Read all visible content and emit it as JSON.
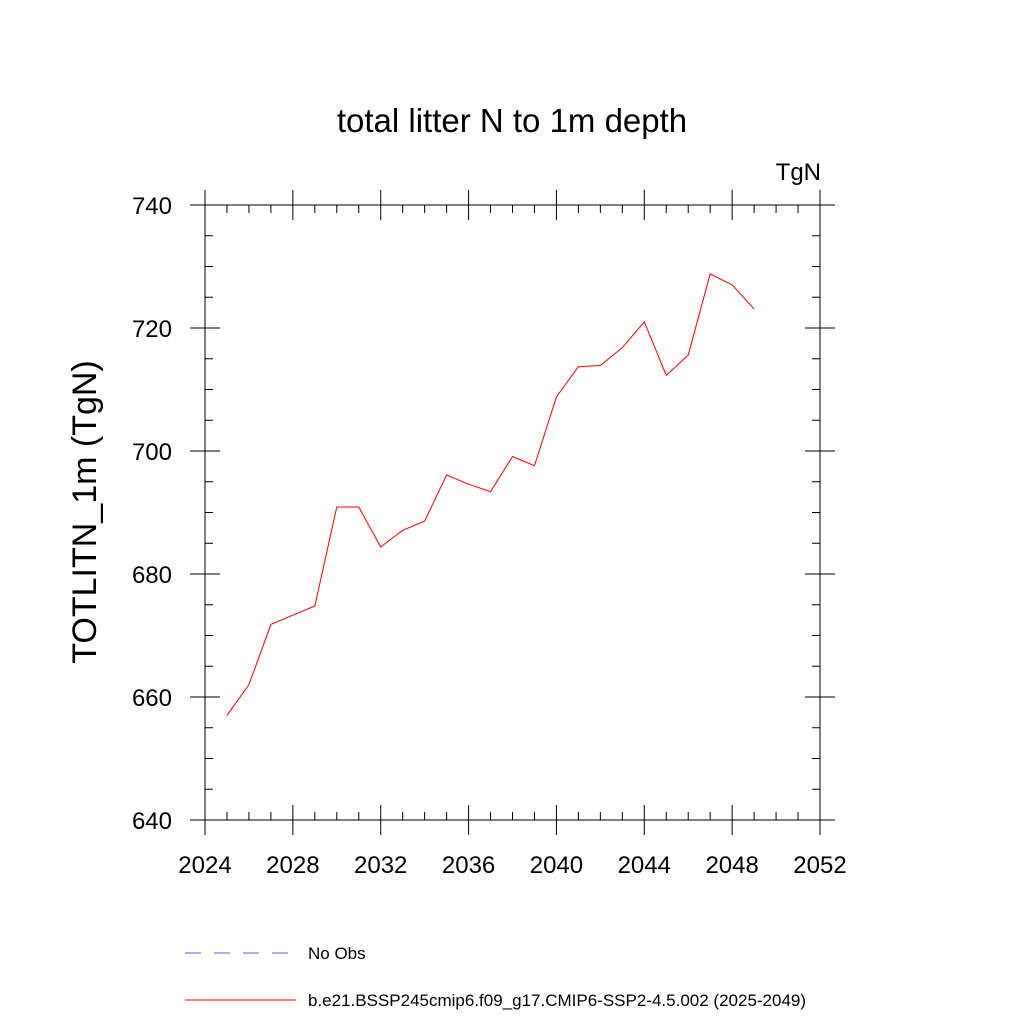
{
  "chart_data": {
    "type": "line",
    "title": "total litter N to 1m depth",
    "units_label": "TgN",
    "ylabel": "TOTLITN_1m  (TgN)",
    "xlabel": "",
    "xlim": [
      2024,
      2052
    ],
    "ylim": [
      640,
      740
    ],
    "x_ticks": [
      2024,
      2028,
      2032,
      2036,
      2040,
      2044,
      2048,
      2052
    ],
    "y_ticks": [
      640,
      660,
      680,
      700,
      720,
      740
    ],
    "x_minor_step": 1,
    "y_minor_step": 5,
    "grid": false,
    "series": [
      {
        "name": "b.e21.BSSP245cmip6.f09_g17.CMIP6-SSP2-4.5.002 (2025-2049)",
        "color": "#ff0000",
        "style": "solid",
        "x": [
          2025,
          2026,
          2027,
          2028,
          2029,
          2030,
          2031,
          2032,
          2033,
          2034,
          2035,
          2036,
          2037,
          2038,
          2039,
          2040,
          2041,
          2042,
          2043,
          2044,
          2045,
          2046,
          2047,
          2048,
          2049
        ],
        "values": [
          657.0,
          662.0,
          671.8,
          673.3,
          674.8,
          690.9,
          690.9,
          684.4,
          687.1,
          688.6,
          696.1,
          694.6,
          693.4,
          699.1,
          697.6,
          708.8,
          713.7,
          713.9,
          716.8,
          721.0,
          712.3,
          715.6,
          728.8,
          727.0,
          723.1
        ]
      }
    ],
    "legend": {
      "placement": "bottom",
      "entries": [
        {
          "label": "No Obs",
          "color": "#6a5acd",
          "style": "dashed"
        },
        {
          "label": "b.e21.BSSP245cmip6.f09_g17.CMIP6-SSP2-4.5.002 (2025-2049)",
          "color": "#ff0000",
          "style": "solid"
        }
      ]
    }
  }
}
